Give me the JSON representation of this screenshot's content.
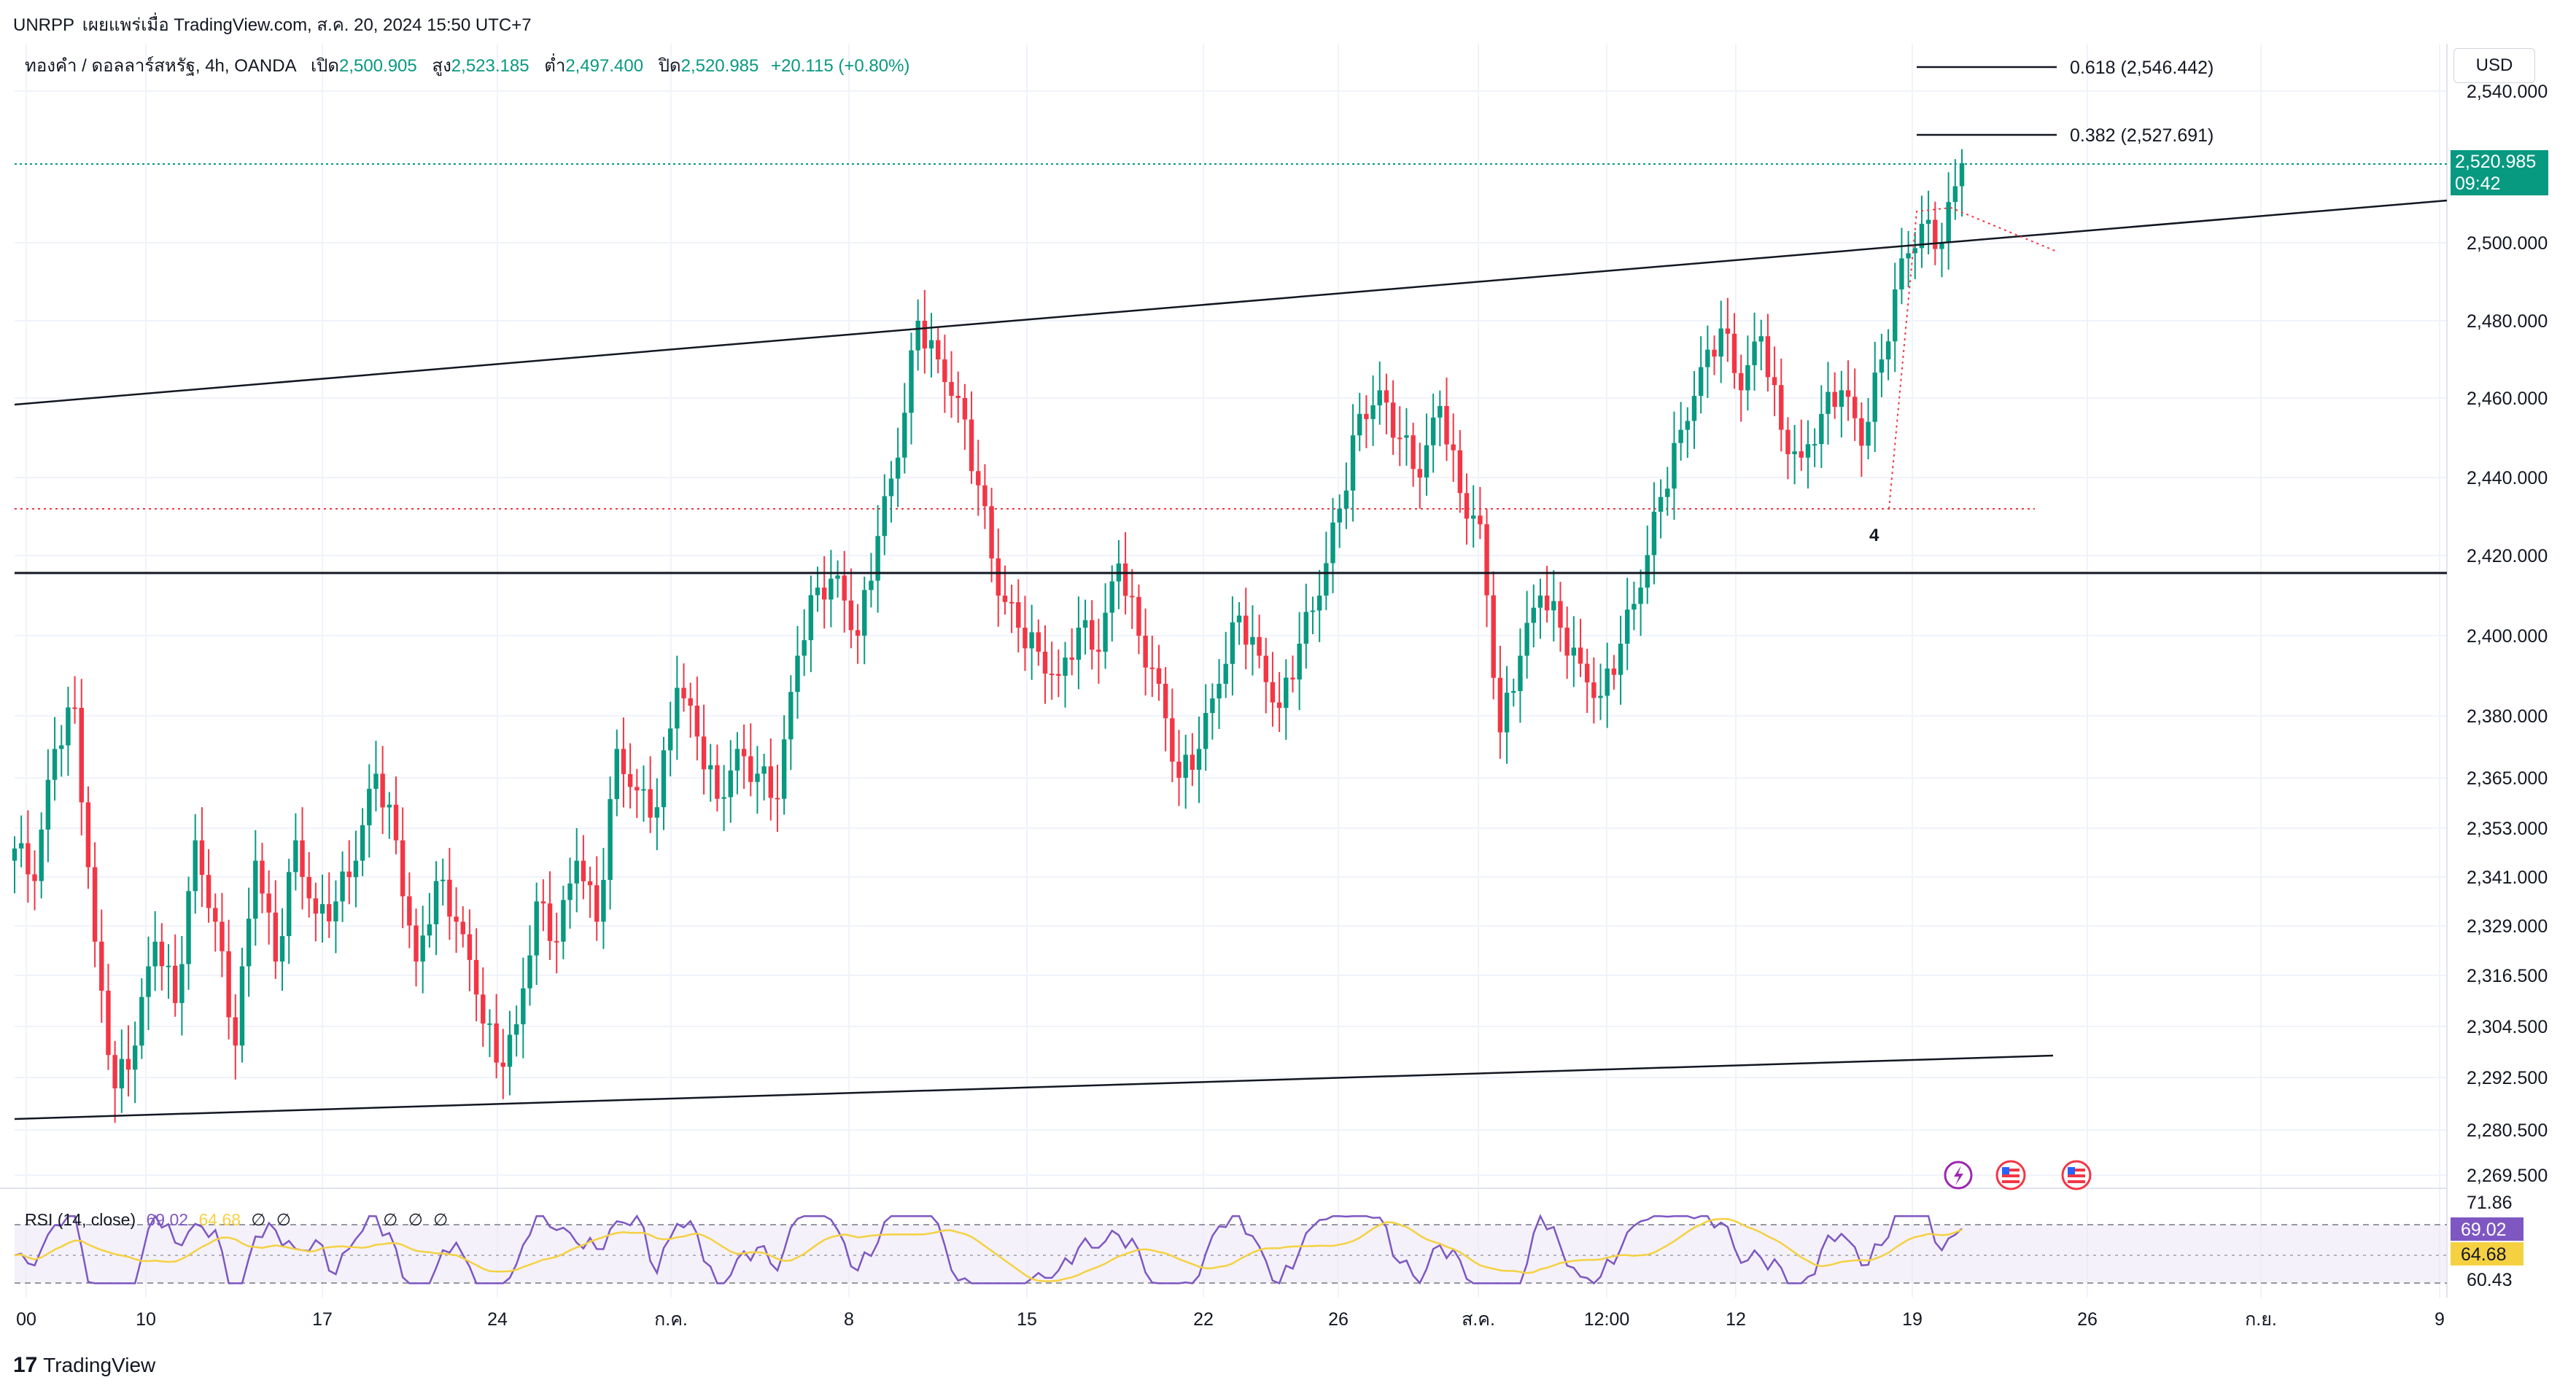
{
  "header": {
    "publisher": "UNRPP",
    "published_on": "เผยแพร่เมื่อ TradingView.com, ส.ค. 20, 2024 15:50 UTC+7"
  },
  "symbol": {
    "name": "ทองคำ / ดอลลาร์สหรัฐ, 4h, OANDA",
    "open_label": "เปิด",
    "open": "2,500.905",
    "high_label": "สูง",
    "high": "2,523.185",
    "low_label": "ต่ำ",
    "low": "2,497.400",
    "close_label": "ปิด",
    "close": "2,520.985",
    "change": "+20.115 (+0.80%)"
  },
  "currency_button": "USD",
  "last_price": {
    "value": "2,520.985",
    "countdown": "09:42"
  },
  "rsi": {
    "legend": "RSI (14, close)",
    "value": "69.02",
    "ma_value": "64.68",
    "na1": "∅",
    "na2": "∅",
    "na3": "∅",
    "na4": "∅",
    "na5": "∅",
    "scale_top": "71.86",
    "scale_bottom": "60.43",
    "value_tag": "69.02",
    "ma_tag": "64.68"
  },
  "fib": {
    "f618": "0.618 (2,546.442)",
    "f382": "0.382 (2,527.691)"
  },
  "wave_label": "4",
  "footer": "TradingView",
  "colors": {
    "up": "#089981",
    "down": "#f23645",
    "rsi": "#7e57c2",
    "rsi_ma": "#f5d142"
  },
  "chart_data": {
    "type": "candlestick",
    "title": "ทองคำ / ดอลลาร์สหรัฐ, 4h, OANDA",
    "y_axis_labels": [
      "2,540.000",
      "2,500.000",
      "2,480.000",
      "2,460.000",
      "2,440.000",
      "2,420.000",
      "2,400.000",
      "2,380.000",
      "2,365.000",
      "2,353.000",
      "2,341.000",
      "2,329.000",
      "2,316.500",
      "2,304.500",
      "2,292.500",
      "2,280.500",
      "2,269.500"
    ],
    "x_axis_labels": [
      "00",
      "10",
      "17",
      "24",
      "ก.ค.",
      "8",
      "15",
      "22",
      "26",
      "ส.ค.",
      "12:00",
      "12",
      "19",
      "26",
      "ก.ย.",
      "9"
    ],
    "approx_close_path": [
      2348,
      2340,
      2372,
      2382,
      2325,
      2290,
      2300,
      2325,
      2310,
      2350,
      2330,
      2300,
      2345,
      2320,
      2350,
      2332,
      2335,
      2345,
      2366,
      2350,
      2320,
      2340,
      2330,
      2312,
      2296,
      2305,
      2335,
      2325,
      2345,
      2330,
      2372,
      2362,
      2358,
      2387,
      2375,
      2360,
      2372,
      2366,
      2360,
      2395,
      2412,
      2415,
      2400,
      2425,
      2445,
      2480,
      2470,
      2460,
      2438,
      2410,
      2402,
      2396,
      2390,
      2402,
      2396,
      2418,
      2400,
      2388,
      2365,
      2372,
      2388,
      2405,
      2395,
      2382,
      2398,
      2410,
      2432,
      2456,
      2462,
      2450,
      2440,
      2458,
      2436,
      2428,
      2376,
      2395,
      2410,
      2402,
      2393,
      2385,
      2398,
      2412,
      2435,
      2452,
      2468,
      2478,
      2462,
      2476,
      2452,
      2445,
      2456,
      2462,
      2448,
      2470,
      2496,
      2505,
      2500,
      2521
    ],
    "series": [
      {
        "name": "RSI (14, close)",
        "last": 69.02
      },
      {
        "name": "RSI MA",
        "last": 64.68
      }
    ],
    "annotations": [
      "0.618 (2,546.442)",
      "0.382 (2,527.691)",
      "4"
    ]
  }
}
